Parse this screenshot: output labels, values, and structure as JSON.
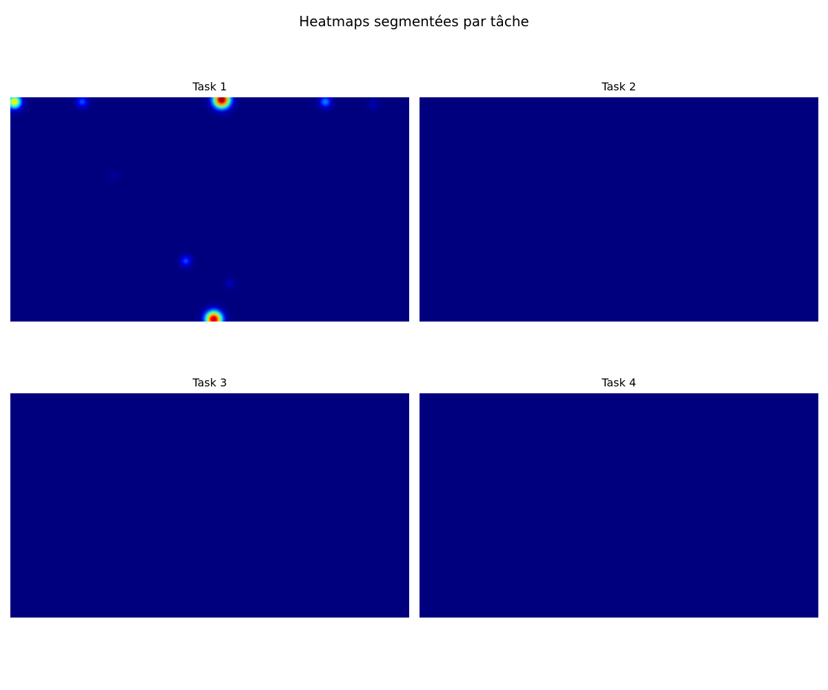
{
  "title": "Heatmaps segmentées par tâche",
  "colormap": {
    "name": "jet",
    "background": "#00007f",
    "stops": [
      "#00007f",
      "#0000ff",
      "#00ffff",
      "#ffff00",
      "#ff0000",
      "#7f0000"
    ]
  },
  "chart_data": [
    {
      "type": "heatmap",
      "title": "Task 1",
      "axes_visible": false,
      "x_range": [
        0,
        1
      ],
      "y_range": [
        0,
        1
      ],
      "hotspots": [
        {
          "x": 0.01,
          "y": 0.02,
          "intensity": 0.72,
          "spread": 0.032
        },
        {
          "x": 0.18,
          "y": 0.02,
          "intensity": 0.33,
          "spread": 0.032
        },
        {
          "x": 0.53,
          "y": 0.01,
          "intensity": 1.0,
          "spread": 0.034
        },
        {
          "x": 0.79,
          "y": 0.02,
          "intensity": 0.38,
          "spread": 0.032
        },
        {
          "x": 0.91,
          "y": 0.03,
          "intensity": 0.12,
          "spread": 0.03
        },
        {
          "x": 0.26,
          "y": 0.35,
          "intensity": 0.07,
          "spread": 0.03
        },
        {
          "x": 0.44,
          "y": 0.73,
          "intensity": 0.32,
          "spread": 0.03
        },
        {
          "x": 0.55,
          "y": 0.83,
          "intensity": 0.12,
          "spread": 0.03
        },
        {
          "x": 0.51,
          "y": 0.99,
          "intensity": 0.96,
          "spread": 0.034
        }
      ]
    },
    {
      "type": "heatmap",
      "title": "Task 2",
      "axes_visible": false,
      "x_range": [
        0,
        1
      ],
      "y_range": [
        0,
        1
      ],
      "hotspots": []
    },
    {
      "type": "heatmap",
      "title": "Task 3",
      "axes_visible": false,
      "x_range": [
        0,
        1
      ],
      "y_range": [
        0,
        1
      ],
      "hotspots": []
    },
    {
      "type": "heatmap",
      "title": "Task 4",
      "axes_visible": false,
      "x_range": [
        0,
        1
      ],
      "y_range": [
        0,
        1
      ],
      "hotspots": []
    }
  ]
}
